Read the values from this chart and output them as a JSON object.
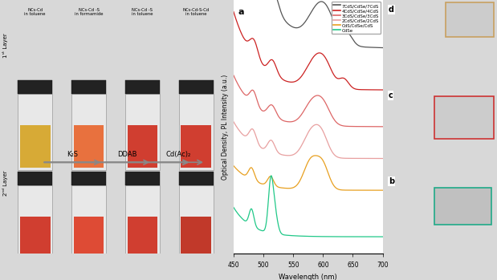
{
  "fig_width": 6.19,
  "fig_height": 3.17,
  "background_color": "#e8e8e8",
  "left_panel": {
    "col_labels": [
      "NCs-Cd\nin toluene",
      "NCs-Cd -S\nin formamide",
      "NCs-Cd -S\nin toluene",
      "NCs-Cd-S-Cd\nin toluene"
    ],
    "row_labels": [
      "1ˢᵗ Layer",
      "2ⁿᵈ Layer"
    ],
    "row1_vial_colors": [
      "#d4a017",
      "#e85c20",
      "#cc2010",
      "#cc2010"
    ],
    "row2_vial_colors": [
      "#cc2010",
      "#dd3015",
      "#cc2010",
      "#bb1a08"
    ],
    "arrow_label1": "K₂S",
    "arrow_label2": "DDAB",
    "arrow_label3": "Cd(Ac)₂"
  },
  "spectra_panel": {
    "label": "a",
    "xlabel": "Wavelength (nm)",
    "ylabel": "Optical Density, PL Intensity (a.u.)",
    "xlim": [
      450,
      700
    ],
    "ylim": [
      0,
      1
    ],
    "legend_labels": [
      "7CdS/CdSe/7CdS",
      "4CdS/CdSe/4CdS",
      "3CdS/CdSe/3CdS",
      "2CdS/CdSe/2CdS",
      "CdS/CdSe/CdS",
      "CdSe"
    ],
    "colors": [
      "#555555",
      "#cc2222",
      "#dd6666",
      "#e8a0a0",
      "#e8a020",
      "#20c888"
    ],
    "offsets": [
      0.82,
      0.65,
      0.5,
      0.37,
      0.24,
      0.05
    ],
    "spectra": {
      "CdSe": {
        "abs_peaks": [
          [
            480,
            0.04
          ],
          [
            490,
            0.07
          ],
          [
            500,
            0.11
          ],
          [
            505,
            0.1
          ],
          [
            510,
            0.06
          ],
          [
            515,
            0.04
          ]
        ],
        "pl_peaks": [
          [
            510,
            0.05
          ],
          [
            515,
            0.1
          ],
          [
            518,
            0.13
          ],
          [
            520,
            0.1
          ],
          [
            525,
            0.04
          ]
        ],
        "baseline": 0.0
      }
    }
  },
  "right_panel_labels": [
    "d",
    "c",
    "b"
  ],
  "right_panel_colors": [
    "#c8a060",
    "#cc3333",
    "#20aa88"
  ]
}
